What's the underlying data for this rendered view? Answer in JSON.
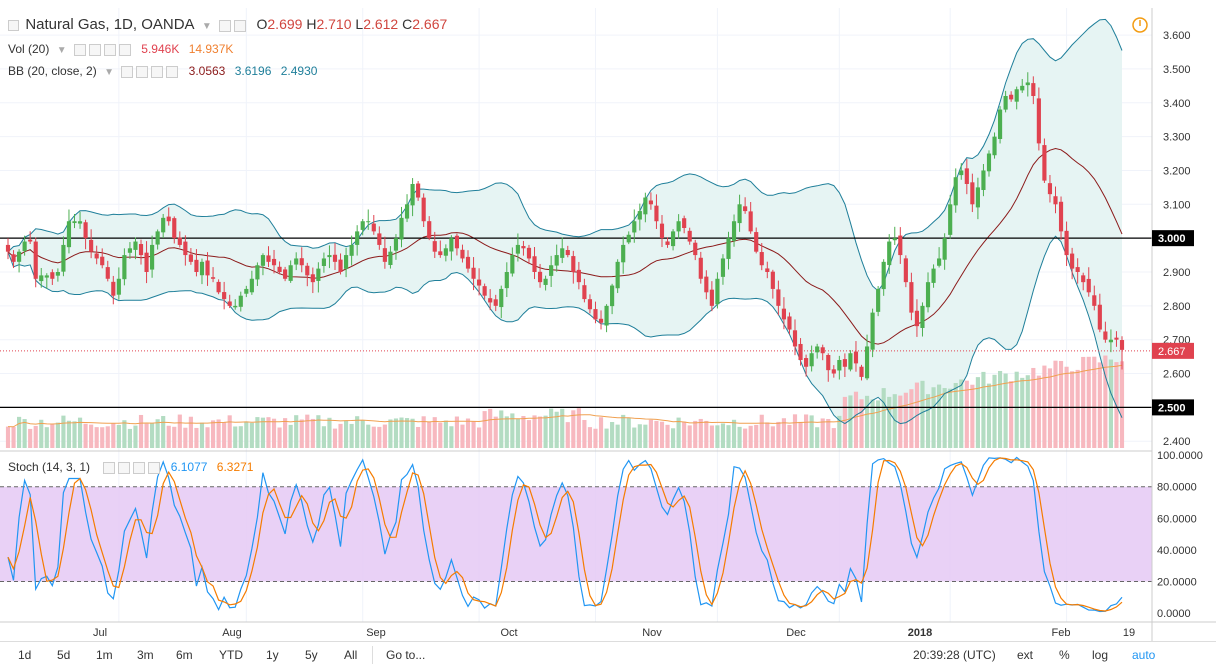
{
  "header": {
    "symbol": "Natural Gas, 1D, OANDA",
    "open_label": "O",
    "open": "2.699",
    "high_label": "H",
    "high": "2.710",
    "low_label": "L",
    "low": "2.612",
    "close_label": "C",
    "close": "2.667"
  },
  "indicators": {
    "vol": {
      "name": "Vol (20)",
      "v1": "5.946K",
      "v2": "14.937K"
    },
    "bb": {
      "name": "BB (20, close, 2)",
      "basis": "3.0563",
      "upper": "3.6196",
      "lower": "2.4930"
    },
    "stoch": {
      "name": "Stoch (14, 3, 1)",
      "k": "6.1077",
      "d": "6.3271"
    }
  },
  "colors": {
    "up": "#4caf50",
    "down": "#e0424f",
    "bb_band": "#1f7f9a",
    "bb_basis": "#8b1a1a",
    "bb_fill": "#e6f4f3",
    "stoch_k": "#2196f3",
    "stoch_d": "#f57c00",
    "stoch_bg": "#e5c9f5",
    "vol_up": "#b3dcc2",
    "vol_down": "#f7b8bf",
    "vol_ma": "#f0a050"
  },
  "chart_data": [
    {
      "type": "candlestick",
      "title": "",
      "ylim": [
        2.38,
        3.68
      ],
      "yticks": [
        "3.600",
        "3.500",
        "3.400",
        "3.300",
        "3.200",
        "3.100",
        "3.000",
        "2.900",
        "2.800",
        "2.700",
        "2.600",
        "2.500",
        "2.400"
      ],
      "xticks": [
        "Jul",
        "Aug",
        "Sep",
        "Oct",
        "Nov",
        "Dec",
        "2018",
        "Feb",
        "19"
      ],
      "horizontal_lines": [
        3.0,
        2.5
      ],
      "horizontal_line_labels": [
        "3.000",
        "2.500"
      ],
      "last_price": 2.667,
      "last_price_label": "2.667",
      "close": [
        2.96,
        2.93,
        2.96,
        2.99,
        2.99,
        2.88,
        2.89,
        2.89,
        2.88,
        2.9,
        2.98,
        3.05,
        3.05,
        3.05,
        3.0,
        2.96,
        2.94,
        2.92,
        2.88,
        2.83,
        2.88,
        2.95,
        2.97,
        2.99,
        2.95,
        2.9,
        2.98,
        3.02,
        3.06,
        3.05,
        3.0,
        2.98,
        2.95,
        2.93,
        2.9,
        2.93,
        2.89,
        2.88,
        2.84,
        2.82,
        2.8,
        2.8,
        2.83,
        2.85,
        2.88,
        2.92,
        2.95,
        2.93,
        2.92,
        2.9,
        2.88,
        2.92,
        2.94,
        2.92,
        2.89,
        2.87,
        2.91,
        2.94,
        2.95,
        2.93,
        2.9,
        2.95,
        2.98,
        3.02,
        3.05,
        3.05,
        3.02,
        2.98,
        2.93,
        2.96,
        3.0,
        3.06,
        3.1,
        3.16,
        3.12,
        3.05,
        3.0,
        2.96,
        2.95,
        2.97,
        3.0,
        2.97,
        2.94,
        2.91,
        2.88,
        2.86,
        2.83,
        2.81,
        2.8,
        2.85,
        2.9,
        2.95,
        2.98,
        2.97,
        2.94,
        2.9,
        2.87,
        2.88,
        2.92,
        2.95,
        2.97,
        2.95,
        2.9,
        2.87,
        2.82,
        2.79,
        2.76,
        2.75,
        2.8,
        2.86,
        2.93,
        2.98,
        3.01,
        3.05,
        3.08,
        3.12,
        3.1,
        3.05,
        3.0,
        2.98,
        3.02,
        3.05,
        3.03,
        2.99,
        2.95,
        2.88,
        2.84,
        2.8,
        2.88,
        2.94,
        3.0,
        3.05,
        3.1,
        3.08,
        3.02,
        2.96,
        2.92,
        2.9,
        2.85,
        2.8,
        2.76,
        2.73,
        2.68,
        2.64,
        2.62,
        2.66,
        2.68,
        2.66,
        2.61,
        2.6,
        2.64,
        2.62,
        2.66,
        2.63,
        2.59,
        2.68,
        2.78,
        2.85,
        2.93,
        2.99,
        3.0,
        2.95,
        2.87,
        2.78,
        2.74,
        2.8,
        2.87,
        2.91,
        2.94,
        3.0,
        3.1,
        3.18,
        3.2,
        3.16,
        3.1,
        3.15,
        3.2,
        3.25,
        3.3,
        3.38,
        3.42,
        3.41,
        3.44,
        3.45,
        3.46,
        3.42,
        3.28,
        3.17,
        3.13,
        3.1,
        3.02,
        2.95,
        2.91,
        2.9,
        2.87,
        2.84,
        2.8,
        2.73,
        2.7,
        2.7,
        2.7,
        2.67
      ],
      "volume_note": "volume bars with 20-period moving average",
      "series": [
        {
          "name": "Vol (20)",
          "last_value": "5.946K"
        },
        {
          "name": "BB (20, close, 2)",
          "basis": 3.0563,
          "upper": 3.6196,
          "lower": 2.493
        }
      ]
    },
    {
      "type": "line",
      "title": "",
      "ylim": [
        -5,
        102
      ],
      "yticks": [
        "100.0000",
        "80.0000",
        "60.0000",
        "40.0000",
        "20.0000",
        "0.0000"
      ],
      "reference_lines": [
        80,
        20
      ],
      "series": [
        {
          "name": "Stoch (14, 3, 1)",
          "last_k": 6.1077,
          "last_d": 6.3271
        }
      ]
    }
  ],
  "footer": {
    "ranges": [
      "1d",
      "5d",
      "1m",
      "3m",
      "6m",
      "YTD",
      "1y",
      "5y",
      "All"
    ],
    "goto": "Go to...",
    "time": "20:39:28 (UTC)",
    "opts": [
      "ext",
      "%",
      "log",
      "auto"
    ]
  }
}
